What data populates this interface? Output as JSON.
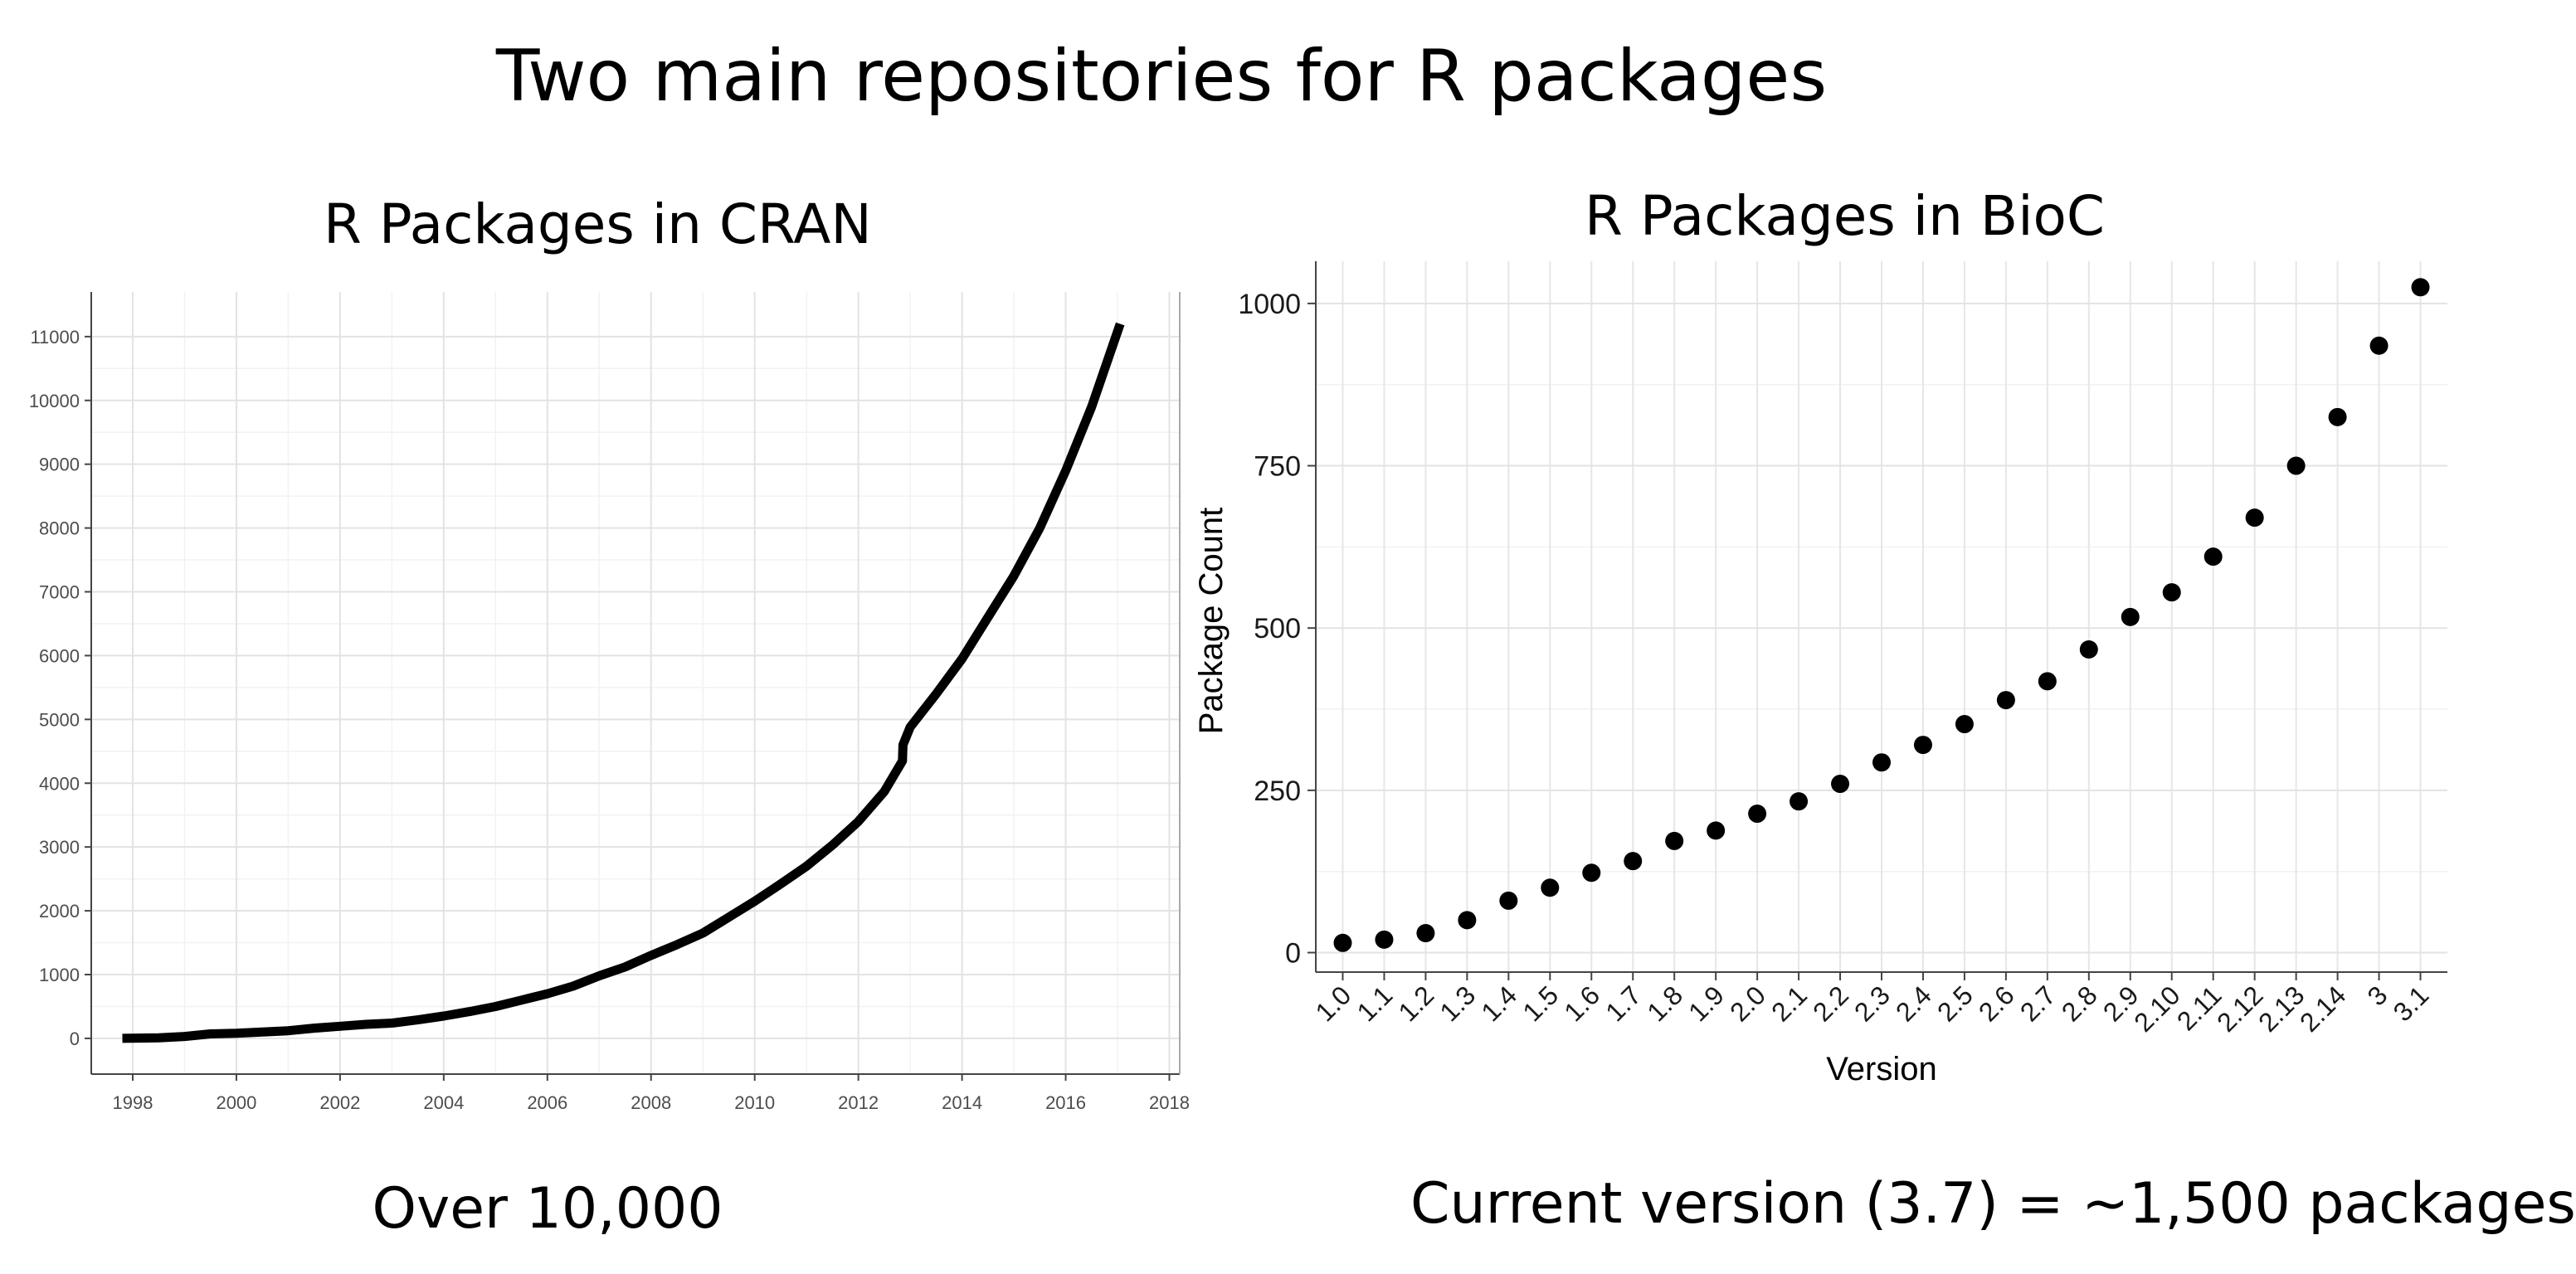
{
  "slide": {
    "title": "Two main repositories for R packages",
    "cran_caption": "Over 10,000",
    "bioc_caption": "Current version (3.7) = ~1,500 packages"
  },
  "chart_data": [
    {
      "id": "cran",
      "type": "line",
      "title": "R Packages in CRAN",
      "xlabel": "",
      "ylabel": "",
      "xlim": [
        1997.2,
        2018.2
      ],
      "ylim": [
        -560,
        11700
      ],
      "x_ticks": [
        1998,
        2000,
        2002,
        2004,
        2006,
        2008,
        2010,
        2012,
        2014,
        2016,
        2018
      ],
      "y_ticks": [
        0,
        1000,
        2000,
        3000,
        4000,
        5000,
        6000,
        7000,
        8000,
        9000,
        10000,
        11000
      ],
      "grid": true,
      "color": "#000000",
      "series": [
        {
          "x": [
            1997.8,
            1998.5,
            1999.0,
            1999.5,
            2000.0,
            2000.5,
            2001.0,
            2001.5,
            2002.0,
            2002.5,
            2003.0,
            2003.5,
            2004.0,
            2004.5,
            2005.0,
            2005.5,
            2006.0,
            2006.5,
            2007.0,
            2007.5,
            2008.0,
            2008.5,
            2009.0,
            2009.5,
            2010.0,
            2010.5,
            2011.0,
            2011.5,
            2012.0,
            2012.5,
            2012.85,
            2012.86,
            2013.0,
            2013.5,
            2014.0,
            2014.5,
            2015.0,
            2015.5,
            2016.0,
            2016.5,
            2017.05
          ],
          "y": [
            0,
            10,
            30,
            70,
            80,
            100,
            120,
            160,
            190,
            220,
            240,
            290,
            350,
            420,
            500,
            600,
            700,
            820,
            980,
            1120,
            1300,
            1470,
            1650,
            1900,
            2150,
            2420,
            2700,
            3030,
            3400,
            3870,
            4350,
            4600,
            4880,
            5400,
            5950,
            6600,
            7250,
            8000,
            8900,
            9900,
            11200
          ]
        }
      ]
    },
    {
      "id": "bioc",
      "type": "scatter",
      "title": "R Packages in BioC",
      "xlabel": "Version",
      "ylabel": "Package Count",
      "categories": [
        "1.0",
        "1.1",
        "1.2",
        "1.3",
        "1.4",
        "1.5",
        "1.6",
        "1.7",
        "1.8",
        "1.9",
        "2.0",
        "2.1",
        "2.2",
        "2.3",
        "2.4",
        "2.5",
        "2.6",
        "2.7",
        "2.8",
        "2.9",
        "2.10",
        "2.11",
        "2.12",
        "2.13",
        "2.14",
        "3",
        "3.1"
      ],
      "values": [
        15,
        20,
        30,
        50,
        80,
        100,
        123,
        141,
        172,
        188,
        214,
        233,
        260,
        293,
        320,
        352,
        389,
        418,
        467,
        517,
        555,
        610,
        670,
        750,
        825,
        935,
        1025
      ],
      "ylim": [
        -30,
        1065
      ],
      "y_ticks": [
        0,
        250,
        500,
        750,
        1000
      ],
      "grid": true,
      "color": "#000000"
    }
  ]
}
